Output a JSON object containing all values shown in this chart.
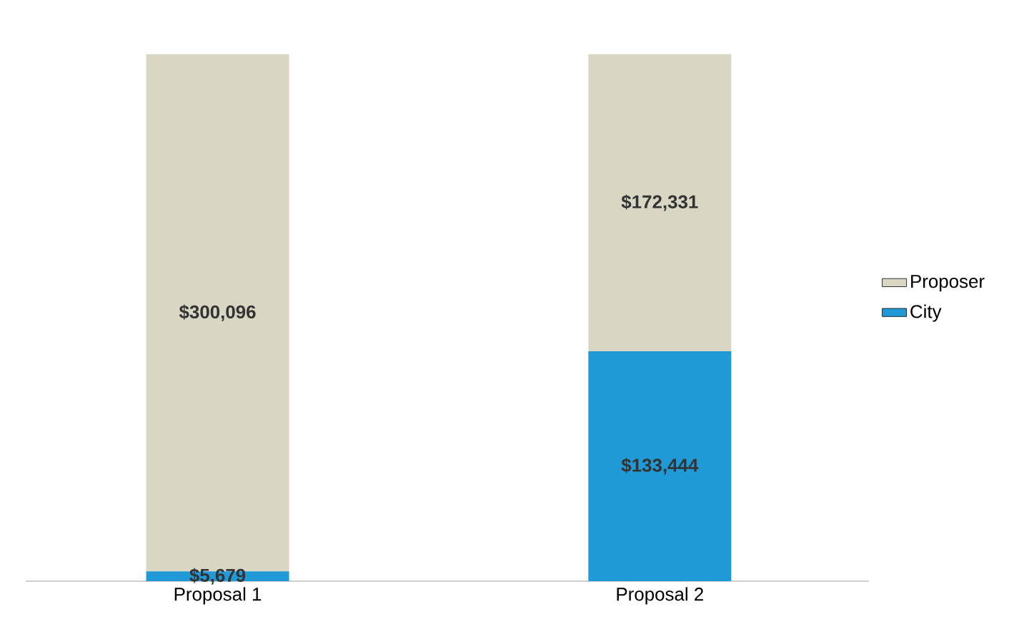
{
  "chart_data": {
    "type": "bar",
    "stacked": true,
    "categories": [
      "Proposal 1",
      "Proposal 2"
    ],
    "legend": "right",
    "series": [
      {
        "name": "City",
        "color": "#1f9ad6",
        "values": [
          5679,
          133444
        ],
        "value_labels": [
          "$5,679",
          "$133,444"
        ]
      },
      {
        "name": "Proposer",
        "color": "#d9d6c4",
        "values": [
          300096,
          172331
        ],
        "value_labels": [
          "$300,096",
          "$172,331"
        ]
      }
    ]
  }
}
